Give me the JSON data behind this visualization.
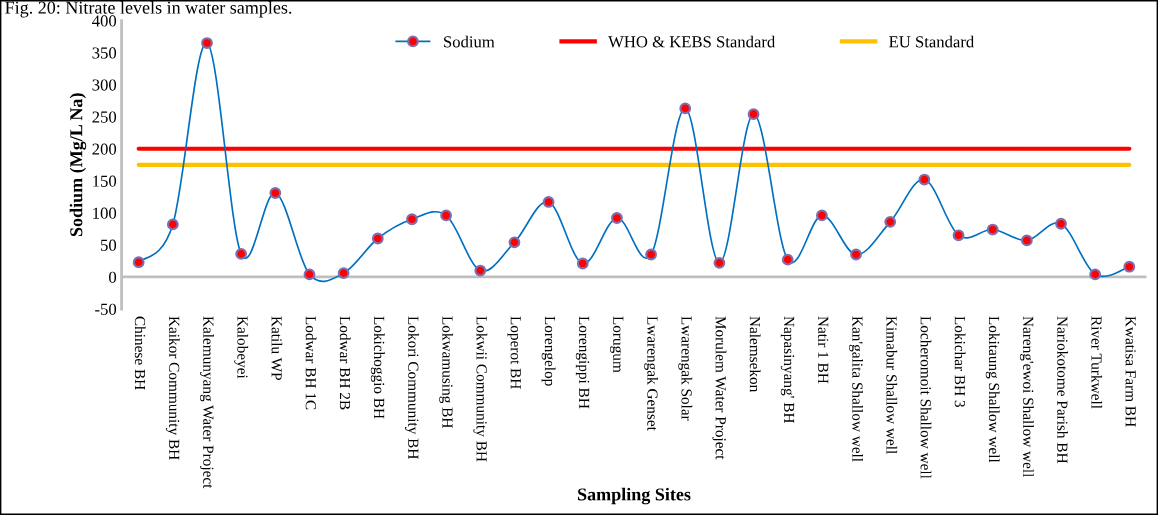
{
  "chart_data": {
    "type": "line",
    "title": "Fig. 20: Nitrate levels in water samples.",
    "xlabel": "Sampling Sites",
    "ylabel": "Sodium (Mg/L Na)",
    "categories": [
      "Chinese BH",
      "Kaikor Community BH",
      "Kalemunyang Water Project",
      "Kalobeyei",
      "Katilu WP",
      "Lodwar BH 1C",
      "Lodwar BH 2B",
      "Lokichoggio BH",
      "Lokori Community BH",
      "Lokwamusing BH",
      "Lokwii Community BH",
      "Loperot BH",
      "Lorengelop",
      "Lorengippi BH",
      "Lorugum",
      "Lwarengak Genset",
      "Lwarengak Solar",
      "Morulem Water Project",
      "Nalemsekon",
      "Napasinyang' BH",
      "Natir 1 BH",
      "Kan'galita Shallow well",
      "Kimabur Shallow well",
      "Locheromoit Shallow well",
      "Lokichar BH 3",
      "Lokitaung Shallow well",
      "Nareng'ewoi Shallow well",
      "Nariokotome Parish BH",
      "River Turkwell",
      "Kwatisa Farm BH"
    ],
    "series": [
      {
        "name": "Sodium",
        "color": "#0070c0",
        "values": [
          23,
          82,
          365,
          36,
          131,
          4,
          6,
          60,
          90,
          96,
          10,
          54,
          117,
          21,
          92,
          35,
          263,
          22,
          254,
          27,
          96,
          35,
          86,
          152,
          65,
          74,
          57,
          83,
          4,
          16
        ]
      }
    ],
    "ref_lines": [
      {
        "axis": "y",
        "value": 200,
        "label": "WHO & KEBS Standard",
        "color": "#ff0000"
      },
      {
        "axis": "y",
        "value": 175,
        "label": "EU Standard",
        "color": "#ffc000"
      }
    ],
    "ylim": [
      -50,
      400
    ],
    "yticks": [
      -50,
      0,
      50,
      100,
      150,
      200,
      250,
      300,
      350,
      400
    ],
    "marker": "circle",
    "line_style": "solid",
    "legend": "top",
    "grid": false
  }
}
